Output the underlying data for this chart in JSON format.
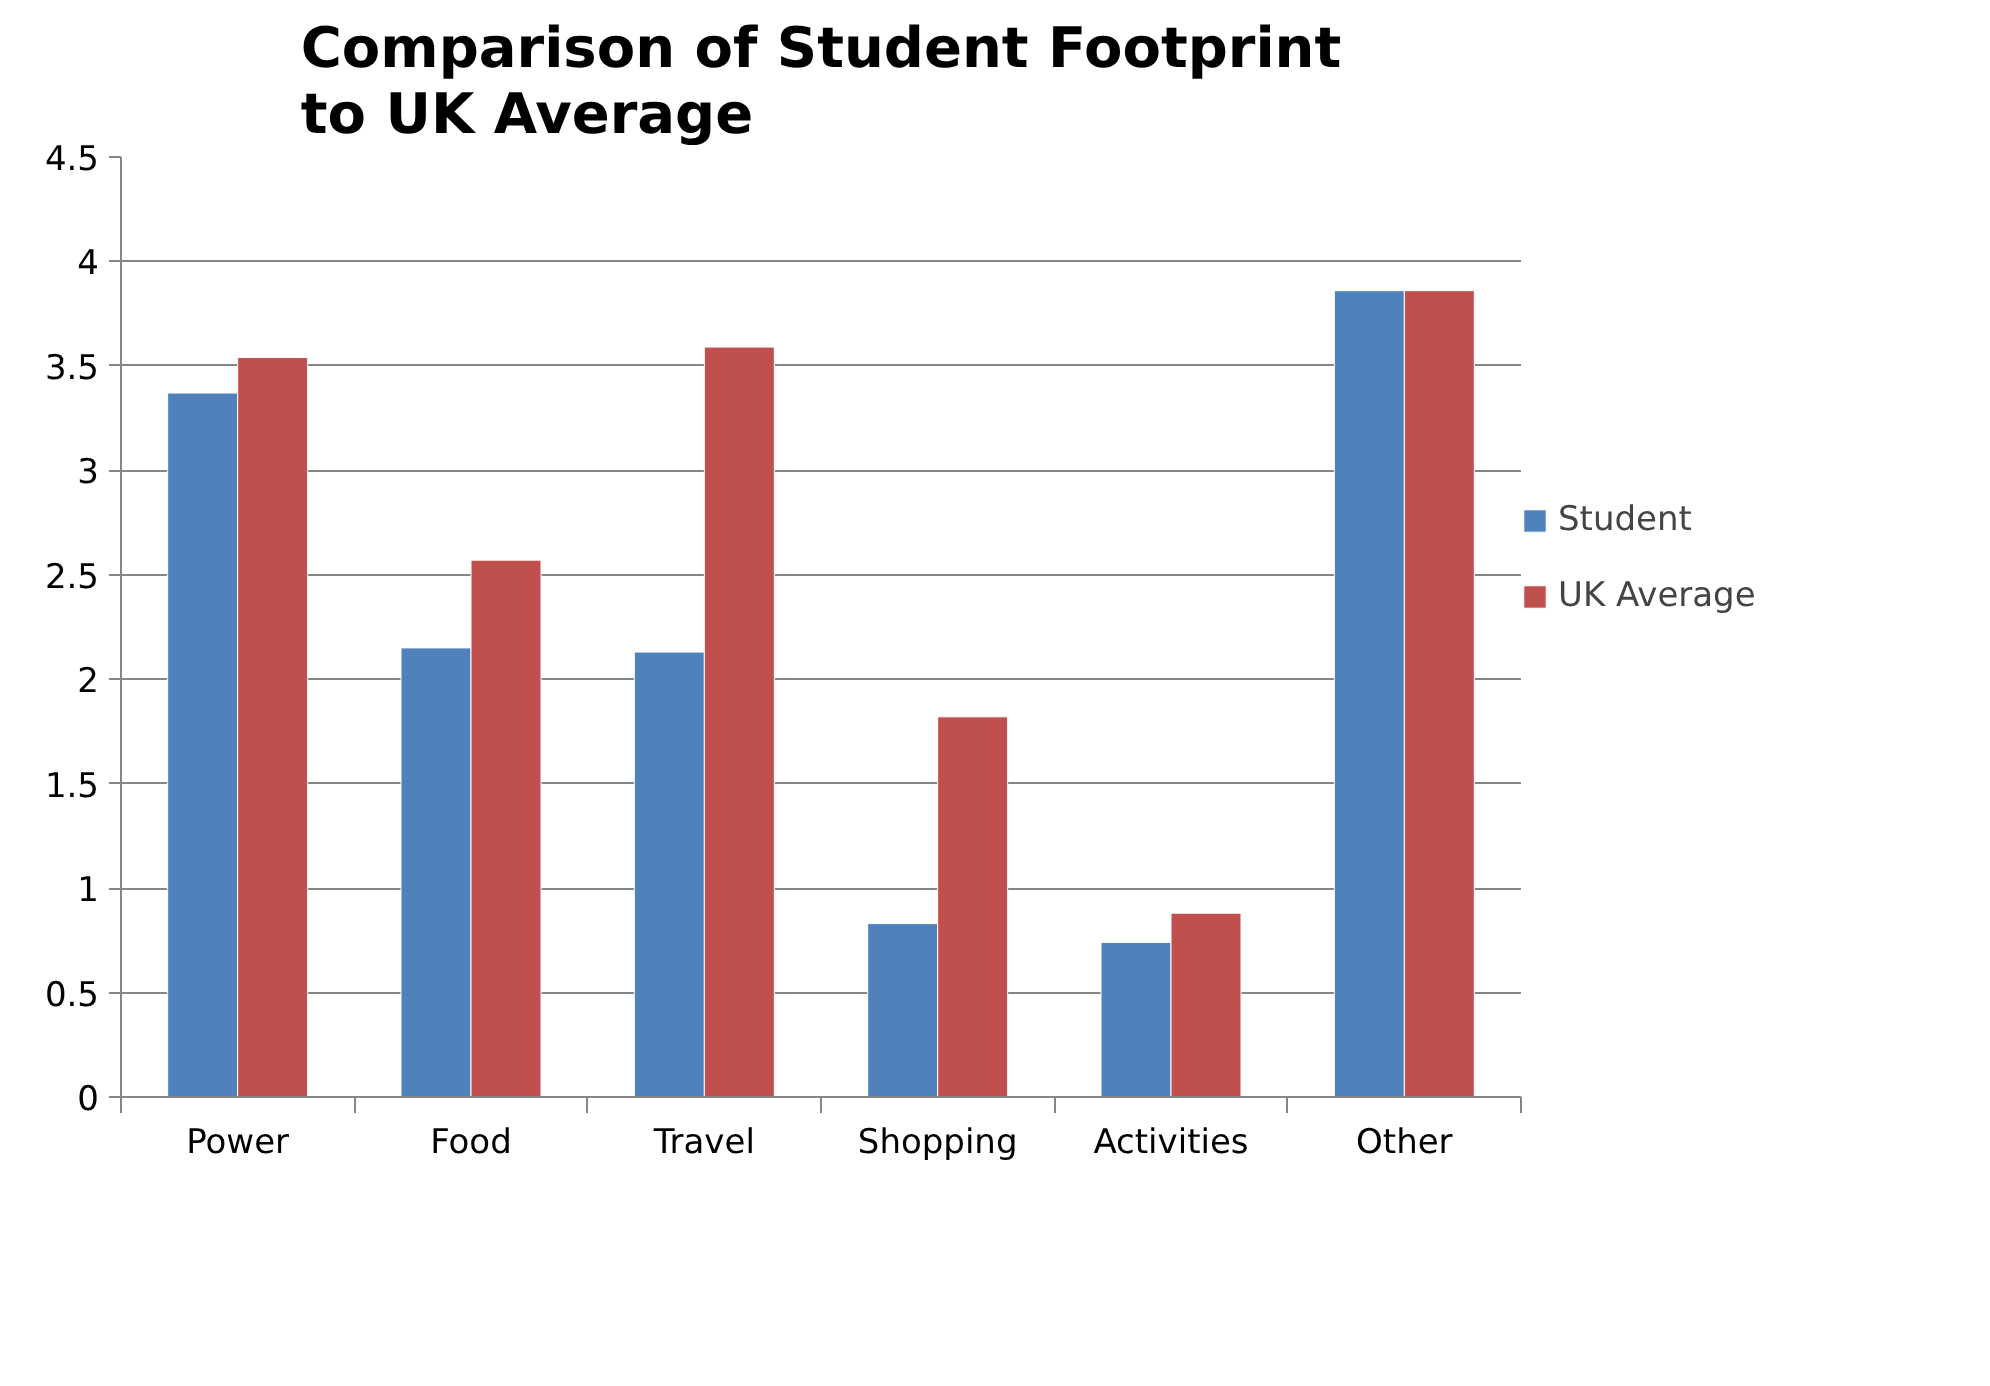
{
  "chart_data": {
    "type": "bar",
    "title": "Comparison of Student Footprint\nto UK Average",
    "categories": [
      "Power",
      "Food",
      "Travel",
      "Shopping",
      "Activities",
      "Other"
    ],
    "series": [
      {
        "name": "Student",
        "color": "#4f81bd",
        "values": [
          3.37,
          2.15,
          2.13,
          0.83,
          0.74,
          3.86
        ]
      },
      {
        "name": "UK Average",
        "color": "#c0504d",
        "values": [
          3.54,
          2.57,
          3.59,
          1.82,
          0.88,
          3.86
        ]
      }
    ],
    "ylim": [
      0,
      4.5
    ],
    "yticks": [
      0,
      0.5,
      1,
      1.5,
      2,
      2.5,
      3,
      3.5,
      4,
      4.5
    ],
    "grid": "y",
    "legend": "right"
  }
}
